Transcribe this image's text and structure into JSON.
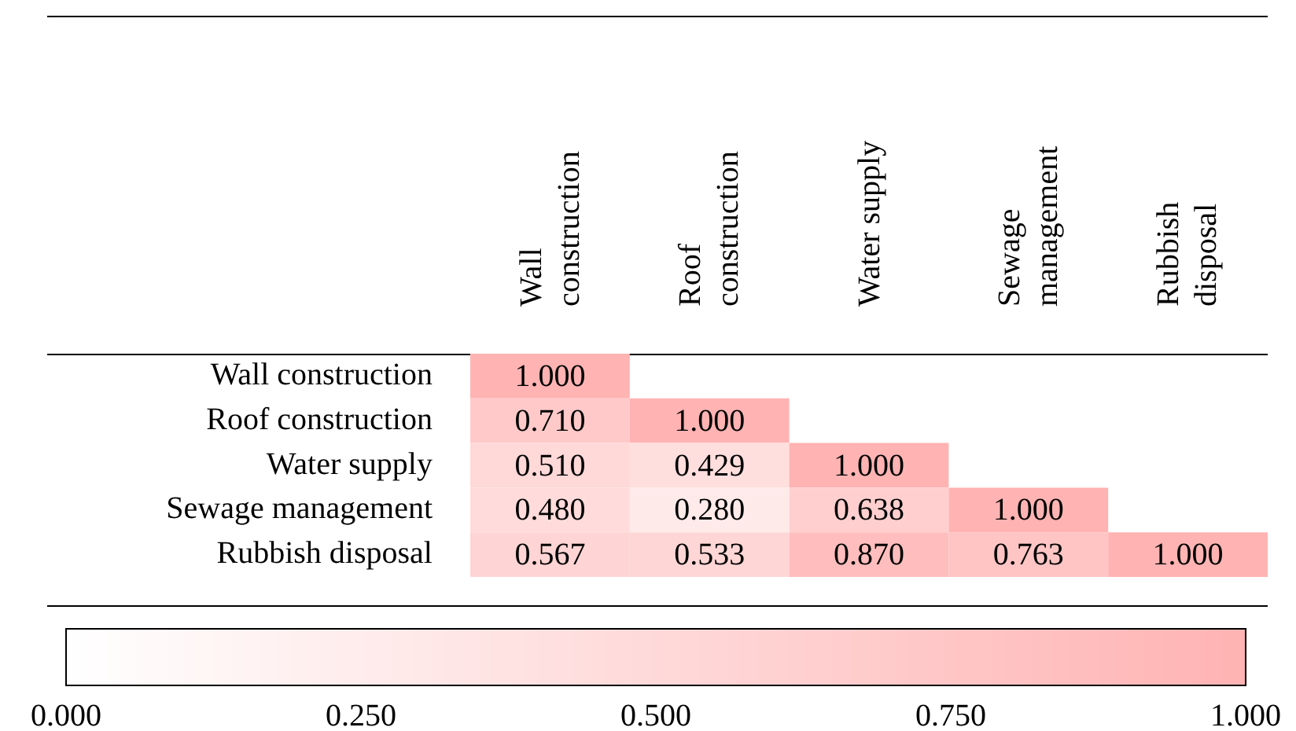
{
  "chart_data": {
    "type": "heatmap",
    "categories": [
      "Wall construction",
      "Roof construction",
      "Water supply",
      "Sewage management",
      "Rubbish disposal"
    ],
    "y_categories": [
      "Wall construction",
      "Roof construction",
      "Water supply",
      "Sewage management",
      "Rubbish disposal"
    ],
    "cells": [
      [
        1.0,
        null,
        null,
        null,
        null
      ],
      [
        0.71,
        1.0,
        null,
        null,
        null
      ],
      [
        0.51,
        0.429,
        1.0,
        null,
        null
      ],
      [
        0.48,
        0.28,
        0.638,
        1.0,
        null
      ],
      [
        0.567,
        0.533,
        0.87,
        0.763,
        1.0
      ]
    ],
    "cell_labels": [
      [
        "1.000",
        null,
        null,
        null,
        null
      ],
      [
        "0.710",
        "1.000",
        null,
        null,
        null
      ],
      [
        "0.510",
        "0.429",
        "1.000",
        null,
        null
      ],
      [
        "0.480",
        "0.280",
        "0.638",
        "1.000",
        null
      ],
      [
        "0.567",
        "0.533",
        "0.870",
        "0.763",
        "1.000"
      ]
    ],
    "color": "#ffb3b3",
    "clim": [
      0,
      1
    ],
    "cticks": [
      {
        "value": 0,
        "label": "0.000"
      },
      {
        "value": 0.25,
        "label": "0.250"
      },
      {
        "value": 0.5,
        "label": "0.500"
      },
      {
        "value": 0.75,
        "label": "0.750"
      },
      {
        "value": 1,
        "label": "1.000"
      }
    ]
  }
}
